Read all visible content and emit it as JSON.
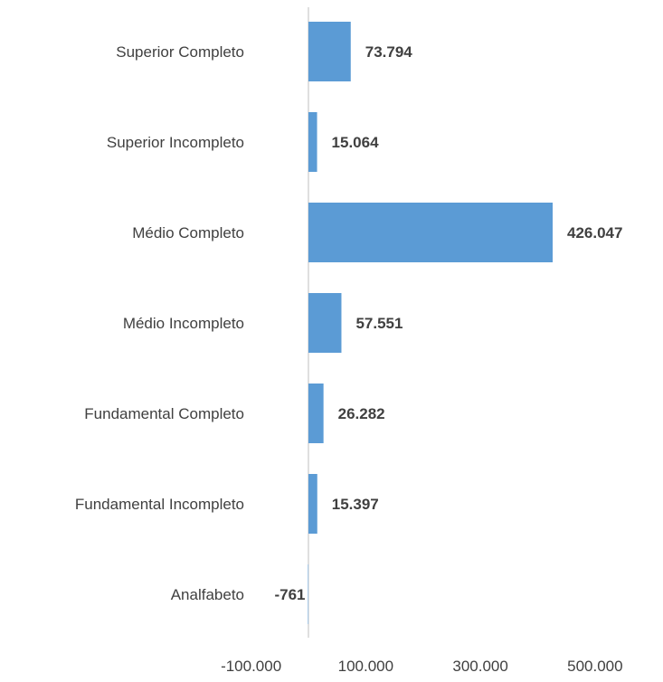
{
  "colors": {
    "bar": "#5b9bd5",
    "axis": "#bfbfbf",
    "category_text": "#404040",
    "value_text": "#404040",
    "tick_text": "#404040",
    "background": "#ffffff"
  },
  "chart_data": {
    "type": "bar",
    "orientation": "horizontal",
    "title": "",
    "xlabel": "",
    "ylabel": "",
    "categories": [
      "Superior Completo",
      "Superior Incompleto",
      "Médio Completo",
      "Médio Incompleto",
      "Fundamental Completo",
      "Fundamental Incompleto",
      "Analfabeto"
    ],
    "values": [
      73794,
      15064,
      426047,
      57551,
      26282,
      15397,
      -761
    ],
    "value_labels": [
      "73.794",
      "15.064",
      "426.047",
      "57.551",
      "26.282",
      "15.397",
      "-761"
    ],
    "xlim": [
      -100000,
      500000
    ],
    "x_ticks": [
      -100000,
      100000,
      300000,
      500000
    ],
    "x_tick_labels": [
      "-100.000",
      "100.000",
      "300.000",
      "500.000"
    ],
    "grid": false,
    "legend": "none"
  }
}
